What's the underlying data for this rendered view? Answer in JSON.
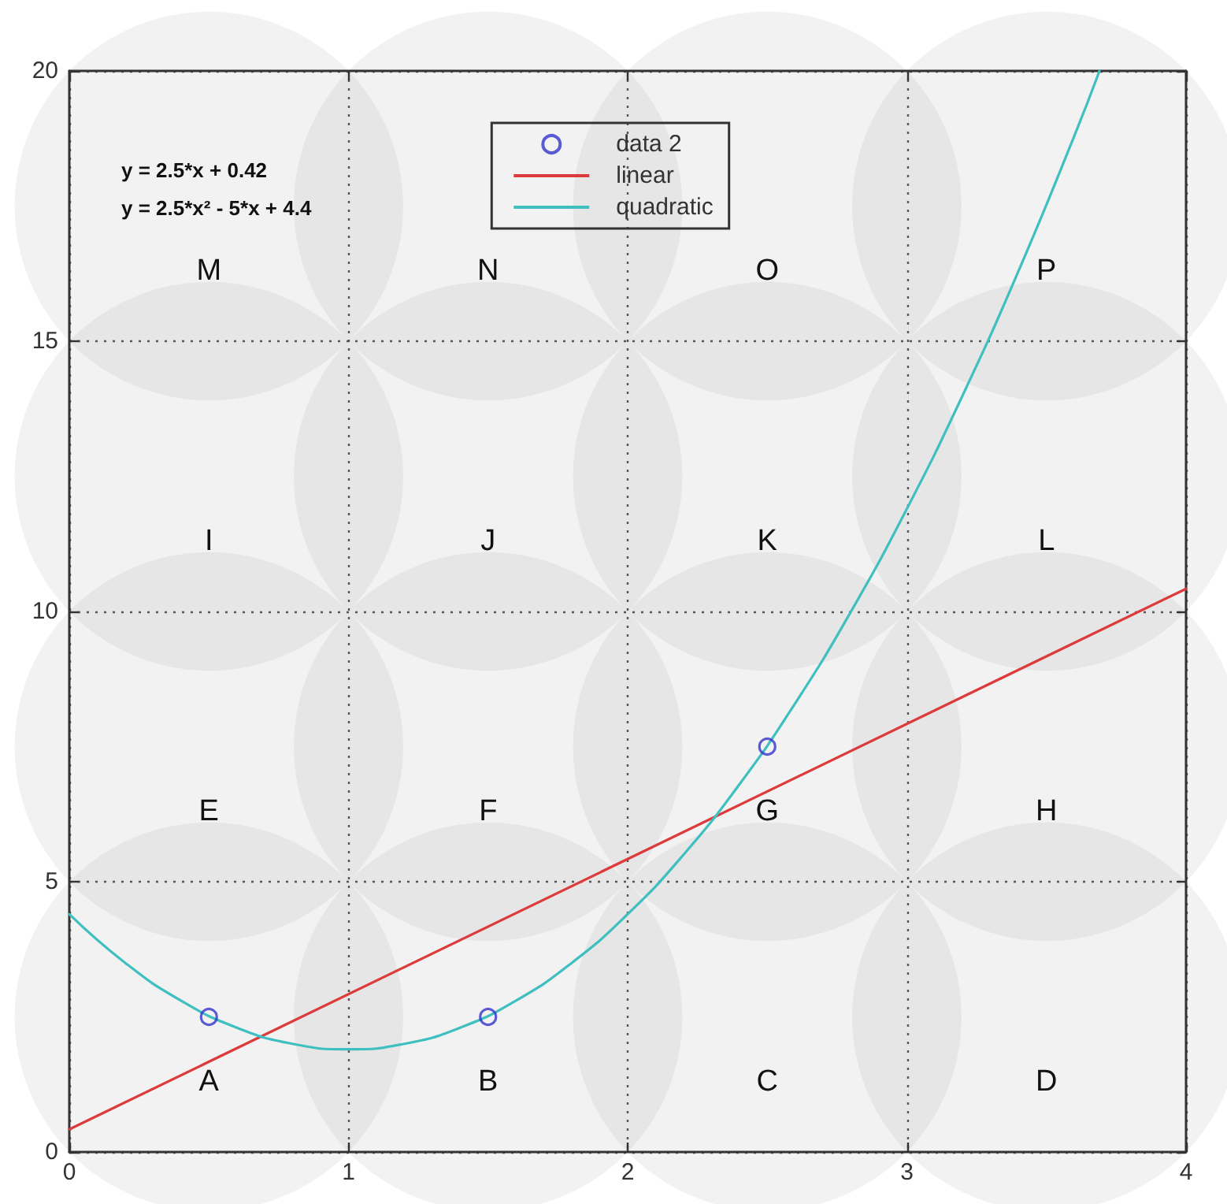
{
  "chart_data": {
    "type": "scatter",
    "xlim": [
      0,
      4
    ],
    "xticks": [
      0,
      1,
      2,
      3,
      4
    ],
    "ylim": [
      0,
      20
    ],
    "yticks": [
      0,
      5,
      10,
      15,
      20
    ],
    "grid": true,
    "legend": "top",
    "series": [
      {
        "name": "data 2",
        "color": "#3333cc",
        "marker": "circle",
        "x": [
          0.5,
          1.5,
          2.5
        ],
        "values": [
          2.5,
          2.5,
          7.5
        ]
      },
      {
        "name": "linear",
        "type": "line",
        "color": "#dd3b3b",
        "marker": "none",
        "x": [
          0,
          4
        ],
        "values": [
          0.42,
          10.42
        ]
      },
      {
        "name": "quadratic",
        "type": "line",
        "color": "#3fbfbf",
        "marker": "none",
        "x": [
          0,
          0.2,
          0.4,
          0.6,
          0.8,
          1.0,
          1.2,
          1.4,
          1.6,
          1.8,
          2.0,
          2.2,
          2.4,
          2.6,
          2.8,
          3.0,
          3.2,
          3.4,
          3.6,
          3.69
        ],
        "values": [
          4.4,
          3.5,
          2.8,
          2.3,
          2.0,
          1.9,
          2.0,
          2.3,
          2.8,
          3.5,
          4.4,
          5.5,
          6.8,
          8.3,
          10.0,
          11.9,
          14.0,
          16.3,
          18.8,
          20.0
        ]
      }
    ],
    "annotations": [
      "y = 2.5*x + 0.42",
      "y = 2.5*x² - 5*x + 4.4",
      "M",
      "N",
      "O",
      "P",
      "I",
      "J",
      "K",
      "L",
      "E",
      "F",
      "G",
      "H",
      "A",
      "B",
      "C",
      "D"
    ]
  }
}
